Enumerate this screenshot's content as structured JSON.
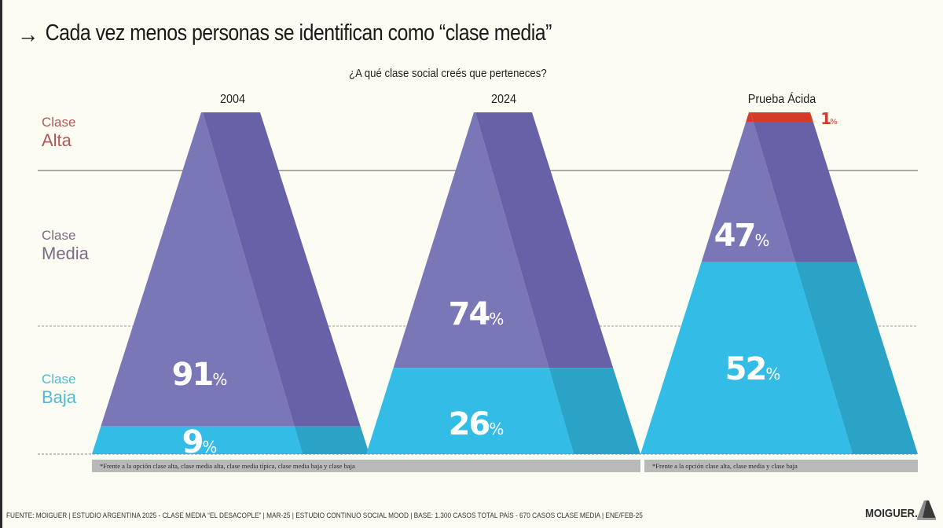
{
  "title": {
    "arrow_icon": "right-arrow-icon",
    "text": "Cada vez menos personas se identifican como “clase media”"
  },
  "colors": {
    "background": "#fdfcf3",
    "media_light": "#7a77b6",
    "media_dark": "#6762a8",
    "baja_light": "#33bde6",
    "baja_dark": "#2ba3c7",
    "alta": "#d43b2a",
    "label_alta": "#b1585a",
    "label_media": "#7d6a86",
    "label_baja": "#4fbad6"
  },
  "row_labels": [
    {
      "line1": "Clase",
      "line2": "Alta"
    },
    {
      "line1": "Clase",
      "line2": "Media"
    },
    {
      "line1": "Clase",
      "line2": "Baja"
    }
  ],
  "notes": [
    "*Frente a la opción clase alta, clase media alta, clase media típica, clase media baja y clase baja",
    "*Frente a la opción clase alta, clase media y clase baja"
  ],
  "footer": "FUENTE: MOIGUER | ESTUDIO ARGENTINA 2025 - CLASE MEDIA “EL DESACOPLE” | MAR-25 | ESTUDIO CONTINUO SOCIAL MOOD | BASE: 1.300 CASOS TOTAL PAÍS - 670 CASOS CLASE MEDIA | ENE/FEB-25",
  "brand": "MOIGUER.",
  "chart_data": {
    "type": "stacked-pyramid",
    "title": "Cada vez menos personas se identifican como “clase media”",
    "subtitle": "¿A qué clase social creés que perteneces?",
    "unit": "%",
    "categories": [
      "2004",
      "2024",
      "Prueba Ácida"
    ],
    "series": [
      {
        "name": "Clase Baja",
        "values": [
          9,
          26,
          52
        ]
      },
      {
        "name": "Clase Media",
        "values": [
          91,
          74,
          47
        ]
      },
      {
        "name": "Clase Alta",
        "values": [
          null,
          null,
          1
        ]
      }
    ],
    "labels": {
      "2004": {
        "Clase Media": "91",
        "Clase Baja": "9"
      },
      "2024": {
        "Clase Media": "74",
        "Clase Baja": "26"
      },
      "Prueba Ácida": {
        "Clase Alta": "1",
        "Clase Media": "47",
        "Clase Baja": "52"
      }
    },
    "row_labels": [
      "Clase Alta",
      "Clase Media",
      "Clase Baja"
    ]
  }
}
